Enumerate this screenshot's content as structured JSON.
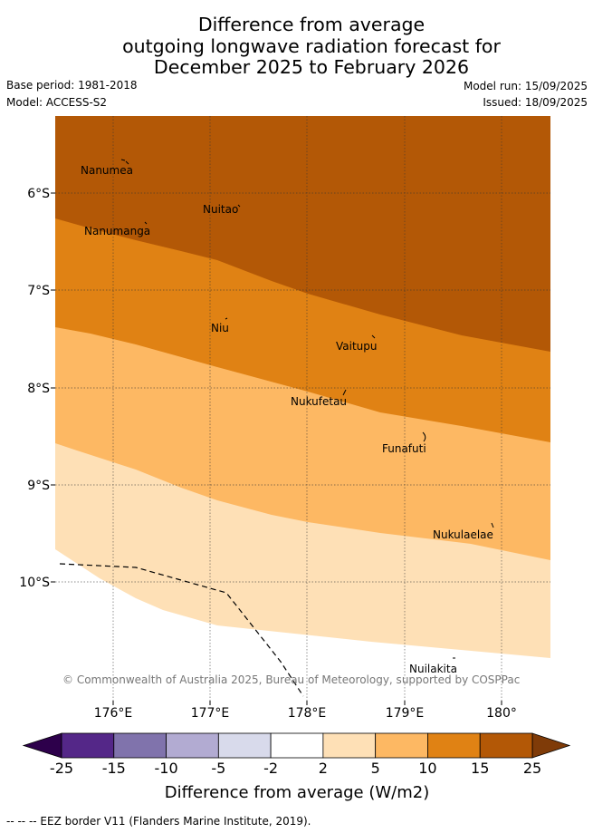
{
  "title": {
    "line1": "Difference from average",
    "line2": "outgoing longwave radiation forecast for",
    "line3": "December 2025 to February 2026"
  },
  "meta": {
    "base_period": "Base period: 1981-2018",
    "model": "Model: ACCESS-S2",
    "model_run": "Model run: 15/09/2025",
    "issued": "Issued: 18/09/2025"
  },
  "map": {
    "x_ticks": [
      "176°E",
      "177°E",
      "178°E",
      "179°E",
      "180°"
    ],
    "y_ticks": [
      "6°S",
      "7°S",
      "8°S",
      "9°S",
      "10°S"
    ],
    "places": [
      {
        "name": "Nanumea",
        "lon": 176.1,
        "lat": -5.69
      },
      {
        "name": "Nuitao",
        "lon": 177.33,
        "lat": -6.11
      },
      {
        "name": "Nanumanga",
        "lon": 176.32,
        "lat": -6.29
      },
      {
        "name": "Niu",
        "lon": 177.16,
        "lat": -7.3
      },
      {
        "name": "Vaitupu",
        "lon": 178.68,
        "lat": -7.48
      },
      {
        "name": "Nukufetau",
        "lon": 178.38,
        "lat": -8.03
      },
      {
        "name": "Funafuti",
        "lon": 179.2,
        "lat": -8.52
      },
      {
        "name": "Nukulaelae",
        "lon": 179.83,
        "lat": -9.38
      },
      {
        "name": "Nuilakita",
        "lon": 179.5,
        "lat": -10.77
      }
    ],
    "copyright": "© Commonwealth of Australia 2025, Bureau of Meteorology, supported by COSPPac",
    "colors": {
      "c15_25": "#b35806",
      "c10_15": "#e08214",
      "c5_10": "#fdb863",
      "c2_5": "#fee0b6",
      "c_neg2_2": "#ffffff"
    }
  },
  "colorbar": {
    "labels": [
      "-25",
      "-15",
      "-10",
      "-5",
      "-2",
      "2",
      "5",
      "10",
      "15",
      "25"
    ],
    "colors": [
      "#542788",
      "#8073ac",
      "#b2abd2",
      "#d8daeb",
      "#ffffff",
      "#fee0b6",
      "#fdb863",
      "#e08214",
      "#b35806"
    ],
    "under_color": "#2d004b",
    "over_color": "#7f3b08",
    "title": "Difference from average (W/m2)"
  },
  "footer": "--  --  -- EEZ border V11 (Flanders Marine Institute, 2019)."
}
